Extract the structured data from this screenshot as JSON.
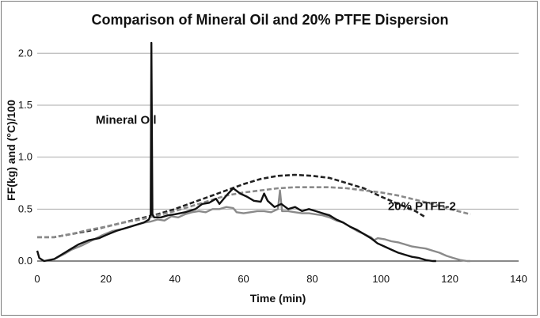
{
  "chart_data": {
    "type": "line",
    "title": "Comparison of Mineral Oil and 20% PTFE Dispersion",
    "xlabel": "Time (min)",
    "ylabel": "FF(kg) and (°C)/100",
    "xlim": [
      0,
      140
    ],
    "ylim": [
      0,
      2.2
    ],
    "x_ticks": [
      "0",
      "20",
      "40",
      "60",
      "80",
      "100",
      "120",
      "140"
    ],
    "y_ticks": [
      "0.0",
      "0.5",
      "1.0",
      "1.5",
      "2.0"
    ],
    "grid": "horizontal",
    "legend": "none",
    "annotations": [
      {
        "text": "Mineral Oil",
        "x": 17,
        "y": 1.32
      },
      {
        "text": "20% PTFE-2",
        "x": 102,
        "y": 0.49
      }
    ],
    "series": [
      {
        "color": "#111111",
        "style": "solid",
        "points": [
          [
            0,
            0.1
          ],
          [
            0.6,
            0.03
          ],
          [
            2,
            0
          ],
          [
            5,
            0.02
          ],
          [
            8,
            0.08
          ],
          [
            10,
            0.12
          ],
          [
            12,
            0.16
          ],
          [
            15,
            0.2
          ],
          [
            18,
            0.22
          ],
          [
            20,
            0.25
          ],
          [
            23,
            0.29
          ],
          [
            26,
            0.32
          ],
          [
            29,
            0.35
          ],
          [
            31,
            0.37
          ],
          [
            32.5,
            0.4
          ],
          [
            33,
            0.45
          ],
          [
            33.2,
            2.1
          ],
          [
            33.5,
            0.45
          ],
          [
            34,
            0.42
          ],
          [
            36,
            0.42
          ],
          [
            38,
            0.44
          ],
          [
            40,
            0.45
          ],
          [
            43,
            0.47
          ],
          [
            46,
            0.5
          ],
          [
            48,
            0.55
          ],
          [
            50,
            0.56
          ],
          [
            52,
            0.6
          ],
          [
            53,
            0.55
          ],
          [
            55,
            0.63
          ],
          [
            57,
            0.7
          ],
          [
            59,
            0.65
          ],
          [
            61,
            0.62
          ],
          [
            63,
            0.58
          ],
          [
            65,
            0.57
          ],
          [
            66,
            0.65
          ],
          [
            67,
            0.58
          ],
          [
            69,
            0.52
          ],
          [
            71,
            0.55
          ],
          [
            73,
            0.5
          ],
          [
            75,
            0.52
          ],
          [
            77,
            0.48
          ],
          [
            79,
            0.5
          ],
          [
            81,
            0.48
          ],
          [
            83,
            0.46
          ],
          [
            85,
            0.44
          ],
          [
            87,
            0.4
          ],
          [
            89,
            0.37
          ],
          [
            91,
            0.33
          ],
          [
            93,
            0.3
          ],
          [
            95,
            0.26
          ],
          [
            97,
            0.22
          ],
          [
            99,
            0.17
          ],
          [
            101,
            0.14
          ],
          [
            103,
            0.11
          ],
          [
            105,
            0.08
          ],
          [
            107,
            0.06
          ],
          [
            109,
            0.04
          ],
          [
            111,
            0.03
          ],
          [
            113,
            0.01
          ],
          [
            115,
            0.0
          ],
          [
            116,
            0.0
          ]
        ]
      },
      {
        "color": "#8a8a8a",
        "style": "solid",
        "points": [
          [
            5,
            0.02
          ],
          [
            8,
            0.07
          ],
          [
            10,
            0.11
          ],
          [
            13,
            0.15
          ],
          [
            16,
            0.2
          ],
          [
            19,
            0.25
          ],
          [
            22,
            0.29
          ],
          [
            25,
            0.31
          ],
          [
            28,
            0.34
          ],
          [
            31,
            0.37
          ],
          [
            33,
            0.38
          ],
          [
            35,
            0.4
          ],
          [
            37,
            0.39
          ],
          [
            39,
            0.43
          ],
          [
            41,
            0.42
          ],
          [
            43,
            0.45
          ],
          [
            45,
            0.47
          ],
          [
            47,
            0.48
          ],
          [
            49,
            0.47
          ],
          [
            51,
            0.5
          ],
          [
            53,
            0.5
          ],
          [
            55,
            0.52
          ],
          [
            57,
            0.51
          ],
          [
            58,
            0.47
          ],
          [
            60,
            0.46
          ],
          [
            62,
            0.47
          ],
          [
            64,
            0.48
          ],
          [
            66,
            0.48
          ],
          [
            68,
            0.47
          ],
          [
            70,
            0.5
          ],
          [
            70.6,
            0.68
          ],
          [
            71.2,
            0.48
          ],
          [
            73,
            0.48
          ],
          [
            75,
            0.47
          ],
          [
            77,
            0.46
          ],
          [
            79,
            0.46
          ],
          [
            81,
            0.45
          ],
          [
            83,
            0.44
          ],
          [
            85,
            0.42
          ],
          [
            87,
            0.39
          ],
          [
            89,
            0.37
          ],
          [
            91,
            0.33
          ],
          [
            93,
            0.29
          ],
          [
            95,
            0.26
          ],
          [
            97,
            0.23
          ],
          [
            98,
            0.2
          ],
          [
            99,
            0.22
          ],
          [
            101,
            0.21
          ],
          [
            103,
            0.19
          ],
          [
            105,
            0.18
          ],
          [
            107,
            0.16
          ],
          [
            109,
            0.14
          ],
          [
            111,
            0.13
          ],
          [
            113,
            0.12
          ],
          [
            115,
            0.1
          ],
          [
            117,
            0.08
          ],
          [
            119,
            0.05
          ],
          [
            121,
            0.03
          ],
          [
            123,
            0.01
          ],
          [
            125,
            0.0
          ],
          [
            126,
            0.0
          ]
        ]
      },
      {
        "color": "#222222",
        "style": "dashed",
        "points": [
          [
            0,
            0.23
          ],
          [
            5,
            0.23
          ],
          [
            10,
            0.26
          ],
          [
            15,
            0.29
          ],
          [
            20,
            0.33
          ],
          [
            25,
            0.37
          ],
          [
            30,
            0.41
          ],
          [
            35,
            0.45
          ],
          [
            40,
            0.5
          ],
          [
            45,
            0.56
          ],
          [
            50,
            0.62
          ],
          [
            55,
            0.68
          ],
          [
            60,
            0.74
          ],
          [
            65,
            0.79
          ],
          [
            70,
            0.82
          ],
          [
            75,
            0.83
          ],
          [
            80,
            0.82
          ],
          [
            85,
            0.8
          ],
          [
            90,
            0.75
          ],
          [
            95,
            0.7
          ],
          [
            100,
            0.62
          ],
          [
            105,
            0.55
          ],
          [
            110,
            0.48
          ],
          [
            113,
            0.42
          ]
        ]
      },
      {
        "color": "#8a8a8a",
        "style": "dashed",
        "points": [
          [
            0,
            0.23
          ],
          [
            5,
            0.23
          ],
          [
            10,
            0.26
          ],
          [
            15,
            0.3
          ],
          [
            20,
            0.33
          ],
          [
            25,
            0.37
          ],
          [
            30,
            0.4
          ],
          [
            35,
            0.44
          ],
          [
            40,
            0.48
          ],
          [
            45,
            0.53
          ],
          [
            50,
            0.58
          ],
          [
            55,
            0.63
          ],
          [
            60,
            0.66
          ],
          [
            65,
            0.68
          ],
          [
            70,
            0.7
          ],
          [
            75,
            0.71
          ],
          [
            80,
            0.71
          ],
          [
            85,
            0.71
          ],
          [
            90,
            0.7
          ],
          [
            95,
            0.68
          ],
          [
            100,
            0.66
          ],
          [
            105,
            0.63
          ],
          [
            110,
            0.59
          ],
          [
            115,
            0.55
          ],
          [
            120,
            0.5
          ],
          [
            126,
            0.45
          ]
        ]
      }
    ]
  }
}
